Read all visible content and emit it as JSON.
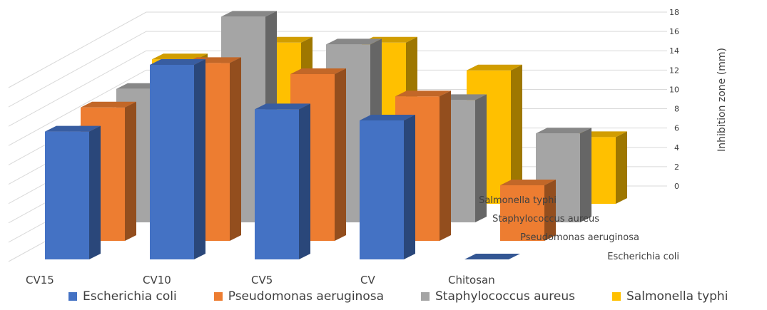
{
  "chart_data": {
    "type": "bar",
    "title": "",
    "categories": [
      "CV15",
      "CV10",
      "CV5",
      "CV",
      "Chitosan"
    ],
    "zlabel": "Inhibition zone (mm)",
    "zlim": [
      0,
      18
    ],
    "zticks": [
      0,
      2,
      4,
      6,
      8,
      10,
      12,
      14,
      16,
      18
    ],
    "series": [
      {
        "name": "Escherichia coli",
        "color": "#4472c4",
        "values": [
          11.5,
          17.5,
          13.5,
          12.5,
          0
        ]
      },
      {
        "name": "Pseudomonas aeruginosa",
        "color": "#ed7d31",
        "values": [
          12,
          16,
          15,
          13,
          5
        ]
      },
      {
        "name": "Staphylococcus aureus",
        "color": "#a5a5a5",
        "values": [
          12,
          18.5,
          16,
          11,
          8
        ]
      },
      {
        "name": "Salmonella typhi",
        "color": "#ffc000",
        "values": [
          13,
          14.5,
          14.5,
          12,
          6
        ]
      }
    ],
    "grid": true,
    "legend_position": "bottom"
  }
}
